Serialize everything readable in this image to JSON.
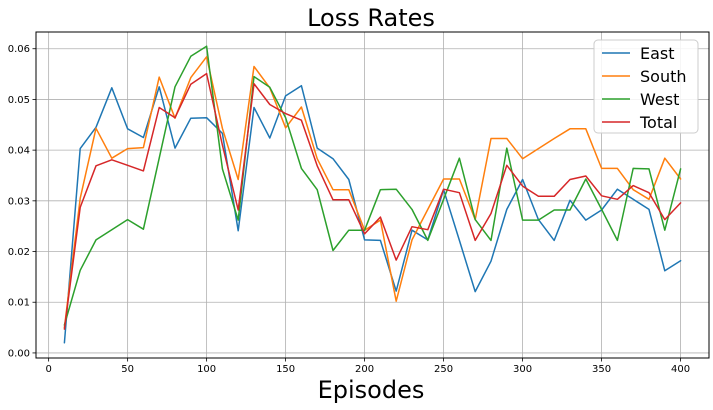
{
  "chart_data": {
    "type": "line",
    "title": "Loss Rates",
    "xlabel": "Episodes",
    "ylabel": "",
    "xlim": [
      -8,
      418
    ],
    "ylim": [
      -0.001,
      0.0633
    ],
    "x_ticks": [
      0,
      50,
      100,
      150,
      200,
      250,
      300,
      350,
      400
    ],
    "x_tick_labels": [
      "0",
      "50",
      "100",
      "150",
      "200",
      "250",
      "300",
      "350",
      "400"
    ],
    "y_ticks": [
      0.0,
      0.01,
      0.02,
      0.03,
      0.04,
      0.05,
      0.06
    ],
    "y_tick_labels": [
      "0.00",
      "0.01",
      "0.02",
      "0.03",
      "0.04",
      "0.05",
      "0.06"
    ],
    "grid": true,
    "legend_position": "top-right",
    "x": [
      10,
      20,
      30,
      40,
      50,
      60,
      70,
      80,
      90,
      100,
      110,
      120,
      130,
      140,
      150,
      160,
      170,
      180,
      190,
      200,
      210,
      220,
      230,
      240,
      250,
      260,
      270,
      280,
      290,
      300,
      310,
      320,
      330,
      340,
      350,
      360,
      370,
      380,
      390,
      400
    ],
    "series": [
      {
        "name": "East",
        "color": "#1f77b4",
        "values": [
          0.002,
          0.0403,
          0.0445,
          0.0523,
          0.0442,
          0.0425,
          0.0525,
          0.0404,
          0.0463,
          0.0464,
          0.0433,
          0.0241,
          0.0484,
          0.0424,
          0.0507,
          0.0527,
          0.0404,
          0.0383,
          0.0342,
          0.0223,
          0.0222,
          0.0122,
          0.0242,
          0.0223,
          0.0322,
          0.0222,
          0.0121,
          0.0181,
          0.0283,
          0.0342,
          0.0263,
          0.0222,
          0.0301,
          0.0262,
          0.0282,
          0.0323,
          0.0303,
          0.0283,
          0.0162,
          0.0182
        ]
      },
      {
        "name": "South",
        "color": "#ff7f0e",
        "values": [
          0.005,
          0.0305,
          0.0443,
          0.0384,
          0.0403,
          0.0405,
          0.0544,
          0.0463,
          0.0543,
          0.0584,
          0.0443,
          0.0342,
          0.0565,
          0.0523,
          0.0444,
          0.0485,
          0.0383,
          0.0322,
          0.0322,
          0.0242,
          0.0262,
          0.0102,
          0.0223,
          0.0283,
          0.0343,
          0.0343,
          0.0263,
          0.0423,
          0.0423,
          0.0383,
          0.0403,
          0.0423,
          0.0442,
          0.0442,
          0.0364,
          0.0364,
          0.0322,
          0.0303,
          0.0384,
          0.0343
        ]
      },
      {
        "name": "West",
        "color": "#2ca02c",
        "values": [
          0.0055,
          0.0163,
          0.0223,
          0.0243,
          0.0263,
          0.0244,
          0.0384,
          0.0525,
          0.0585,
          0.0605,
          0.0363,
          0.0262,
          0.0545,
          0.0524,
          0.0464,
          0.0364,
          0.0322,
          0.0202,
          0.0242,
          0.0242,
          0.0322,
          0.0323,
          0.0283,
          0.0222,
          0.0303,
          0.0384,
          0.0263,
          0.0222,
          0.0404,
          0.0262,
          0.0262,
          0.0282,
          0.0282,
          0.0343,
          0.0283,
          0.0222,
          0.0364,
          0.0363,
          0.0242,
          0.0363
        ]
      },
      {
        "name": "Total",
        "color": "#d62728",
        "values": [
          0.0047,
          0.0287,
          0.0369,
          0.0381,
          0.037,
          0.0359,
          0.0484,
          0.0464,
          0.053,
          0.0551,
          0.041,
          0.0282,
          0.0531,
          0.049,
          0.0472,
          0.0459,
          0.0369,
          0.0302,
          0.0302,
          0.0235,
          0.0268,
          0.0183,
          0.0249,
          0.0243,
          0.0323,
          0.0316,
          0.0222,
          0.0275,
          0.037,
          0.0329,
          0.0309,
          0.0309,
          0.0342,
          0.0349,
          0.031,
          0.0303,
          0.033,
          0.0316,
          0.0263,
          0.0296
        ]
      }
    ]
  }
}
